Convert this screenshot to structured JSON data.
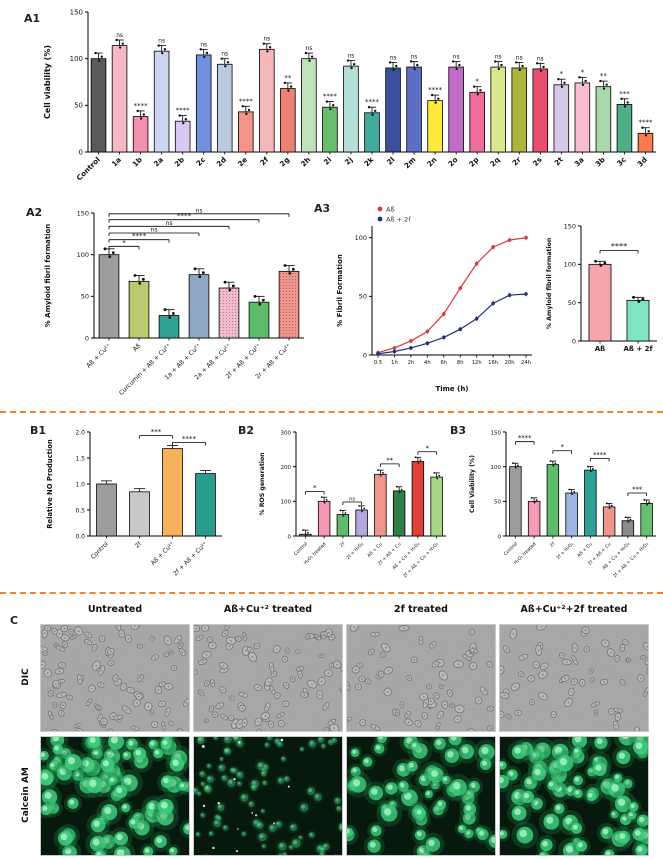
{
  "labels": {
    "a1": "A1",
    "a2": "A2",
    "a3": "A3",
    "b1": "B1",
    "b2": "B2",
    "b3": "B3",
    "c": "C"
  },
  "separator_color": "#ee8434",
  "chart_data": [
    {
      "id": "A1",
      "type": "bar",
      "title": "",
      "ylabel": "Cell viability (%)",
      "ylim": [
        0,
        150
      ],
      "yticks": [
        "0",
        "50",
        "100",
        "150"
      ],
      "err": 6,
      "categories": [
        "Control",
        "1a",
        "1b",
        "2a",
        "2b",
        "2c",
        "2d",
        "2e",
        "2f",
        "2g",
        "2h",
        "2i",
        "2j",
        "2k",
        "2l",
        "2m",
        "2n",
        "2o",
        "2p",
        "2q",
        "2r",
        "2s",
        "2t",
        "3a",
        "3b",
        "3c",
        "3d"
      ],
      "values": [
        100,
        114,
        38,
        108,
        33,
        104,
        94,
        43,
        110,
        68,
        100,
        48,
        92,
        42,
        90,
        91,
        55,
        91,
        64,
        91,
        90,
        89,
        72,
        74,
        70,
        51,
        20
      ],
      "sig": [
        "",
        "ns",
        "****",
        "ns",
        "****",
        "ns",
        "ns",
        "****",
        "ns",
        "**",
        "ns",
        "****",
        "ns",
        "****",
        "ns",
        "ns",
        "****",
        "ns",
        "*",
        "ns",
        "ns",
        "ns",
        "*",
        "*",
        "**",
        "***",
        "****"
      ],
      "colors": [
        "#5a5a5a",
        "#f5b9c4",
        "#f290ad",
        "#ccd5f4",
        "#d9c8f1",
        "#7090dd",
        "#bccadf",
        "#f2948a",
        "#f6b6ba",
        "#ed8176",
        "#bfe2ba",
        "#69bd6e",
        "#b4ded6",
        "#41ab9c",
        "#3c4f9e",
        "#5d6fc4",
        "#ffe93d",
        "#c16cc9",
        "#ef6d9d",
        "#dbe88d",
        "#b0b43e",
        "#e84f6e",
        "#d6c8e9",
        "#f6bdd3",
        "#a9d8a9",
        "#4fae84",
        "#fa7b50"
      ]
    },
    {
      "id": "A2",
      "type": "bar",
      "ylabel": "% Amyloid fibril formation",
      "ylim": [
        0,
        150
      ],
      "yticks": [
        "0",
        "50",
        "100",
        "150"
      ],
      "err": 7,
      "categories": [
        "Aß + Cu²⁺",
        "Aß",
        "Curcumin + Aß + Cu²⁺",
        "1a + Aß + Cu²⁺",
        "2a + Aß + Cu²⁺",
        "2f + Aß + Cu²⁺",
        "2r + Aß + Cu²⁺"
      ],
      "values": [
        100,
        68,
        27,
        76,
        60,
        43,
        80
      ],
      "dotted": [
        4,
        6
      ],
      "colors": [
        "#9d9d9d",
        "#bdc96e",
        "#30a295",
        "#8fa6c6",
        "#f3bacb",
        "#5dbb6b",
        "#ef968c"
      ],
      "brackets": [
        {
          "from": 0,
          "to": 1,
          "label": "*",
          "y": 110
        },
        {
          "from": 0,
          "to": 2,
          "label": "****",
          "y": 118
        },
        {
          "from": 0,
          "to": 3,
          "label": "ns",
          "y": 126
        },
        {
          "from": 0,
          "to": 4,
          "label": "ns",
          "y": 134
        },
        {
          "from": 0,
          "to": 5,
          "label": "****",
          "y": 142
        },
        {
          "from": 0,
          "to": 6,
          "label": "ns",
          "y": 149
        }
      ]
    },
    {
      "id": "A3",
      "type": "line",
      "ylabel": "% Fibril Formation",
      "xlabel": "Time (h)",
      "ylim": [
        0,
        110
      ],
      "yticks": [
        "0",
        "50",
        "100"
      ],
      "legend_position": "top-left",
      "grid": false,
      "x": [
        "0.5",
        "1h",
        "2h",
        "4h",
        "6h",
        "8h",
        "12h",
        "16h",
        "20h",
        "24h"
      ],
      "series": [
        {
          "name": "Aß",
          "color": "#d8393c",
          "values": [
            2,
            6,
            12,
            20,
            35,
            57,
            78,
            92,
            98,
            100
          ]
        },
        {
          "name": "Aß + 2f",
          "color": "#23307c",
          "values": [
            1,
            3,
            6,
            10,
            15,
            22,
            31,
            44,
            51,
            52
          ]
        }
      ]
    },
    {
      "id": "A3b",
      "type": "bar",
      "ylabel": "% Amyloid fibril formation",
      "ylim": [
        0,
        150
      ],
      "yticks": [
        "0",
        "50",
        "100",
        "150"
      ],
      "err": 4,
      "categories": [
        "Aß",
        "Aß + 2f"
      ],
      "values": [
        100,
        53
      ],
      "colors": [
        "#f6a6ab",
        "#80e5c2"
      ],
      "brackets": [
        {
          "from": 0,
          "to": 1,
          "label": "****",
          "y": 118
        }
      ]
    },
    {
      "id": "B1",
      "type": "bar",
      "ylabel": "Relative NO Production",
      "ylim": [
        0,
        2
      ],
      "yticks": [
        "0.0",
        "0.5",
        "1.0",
        "1.5",
        "2.0"
      ],
      "err": 0.06,
      "categories": [
        "Control",
        "2f",
        "Aß + Cu²⁺",
        "2f + Aß + Cu²⁺"
      ],
      "values": [
        1.0,
        0.85,
        1.68,
        1.2
      ],
      "colors": [
        "#9d9d9d",
        "#c8c8c8",
        "#f8b05a",
        "#2a9c8e"
      ],
      "brackets": [
        {
          "from": 1,
          "to": 2,
          "label": "***",
          "y": 1.93
        },
        {
          "from": 2,
          "to": 3,
          "label": "****",
          "y": 1.8
        }
      ]
    },
    {
      "id": "B2",
      "type": "bar",
      "ylabel": "% ROS generation",
      "ylim": [
        0,
        300
      ],
      "yticks": [
        "0",
        "100",
        "200",
        "300"
      ],
      "err": 12,
      "categories": [
        "Control",
        "H₂O₂ treated",
        "2f",
        "2f + H₂O₂",
        "Aß + Cu",
        "2f + Aß + Cu",
        "Aß + Cu + H₂O₂",
        "2f + Aß + Cu + H₂O₂"
      ],
      "values": [
        5,
        100,
        62,
        75,
        178,
        130,
        215,
        170
      ],
      "colors": [
        "#8b8b8b",
        "#f49ab4",
        "#5dbb6b",
        "#b5a6de",
        "#ef968c",
        "#2f7d47",
        "#e04038",
        "#a6d783"
      ],
      "brackets": [
        {
          "from": 0,
          "to": 1,
          "label": "*",
          "y": 128
        },
        {
          "from": 2,
          "to": 3,
          "label": "ns",
          "y": 98
        },
        {
          "from": 4,
          "to": 5,
          "label": "**",
          "y": 208
        },
        {
          "from": 6,
          "to": 7,
          "label": "*",
          "y": 243
        }
      ]
    },
    {
      "id": "B3",
      "type": "bar",
      "ylabel": "Cell Viability (%)",
      "ylim": [
        0,
        150
      ],
      "yticks": [
        "0",
        "50",
        "100",
        "150"
      ],
      "err": 5,
      "categories": [
        "Control",
        "H₂O₂ treated",
        "2f",
        "2f + H₂O₂",
        "Aß + Cu",
        "2f + Aß + Cu",
        "Aß + Cu + H₂O₂",
        "2f + Aß + Cu + H₂O₂"
      ],
      "values": [
        100,
        50,
        103,
        62,
        95,
        42,
        22,
        47
      ],
      "colors": [
        "#9d9d9d",
        "#f49ab4",
        "#5dbb6b",
        "#9eb5e5",
        "#30a295",
        "#ef968c",
        "#8b8b8b",
        "#66c06f"
      ],
      "brackets": [
        {
          "from": 0,
          "to": 1,
          "label": "****",
          "y": 136
        },
        {
          "from": 2,
          "to": 3,
          "label": "*",
          "y": 123
        },
        {
          "from": 4,
          "to": 5,
          "label": "****",
          "y": 112
        },
        {
          "from": 6,
          "to": 7,
          "label": "***",
          "y": 62
        }
      ]
    }
  ],
  "panel_c": {
    "label": "C",
    "col_headers": [
      "Untreated",
      "Aß+Cu⁺² treated",
      "2f treated",
      "Aß+Cu⁺²+2f treated"
    ],
    "row_labels": [
      "DIC",
      "Calcein AM"
    ],
    "images": [
      {
        "kind": "dic",
        "seed": 11,
        "cells": 95
      },
      {
        "kind": "dic",
        "seed": 22,
        "cells": 85
      },
      {
        "kind": "dic",
        "seed": 33,
        "cells": 62
      },
      {
        "kind": "dic",
        "seed": 44,
        "cells": 58
      },
      {
        "kind": "calcein",
        "seed": 55,
        "cells": 80,
        "bright": 1
      },
      {
        "kind": "calcein",
        "seed": 66,
        "cells": 85,
        "bright": 0.5,
        "small": true,
        "specks": 14
      },
      {
        "kind": "calcein",
        "seed": 77,
        "cells": 58,
        "bright": 0.95
      },
      {
        "kind": "calcein",
        "seed": 88,
        "cells": 72,
        "bright": 1
      }
    ]
  }
}
